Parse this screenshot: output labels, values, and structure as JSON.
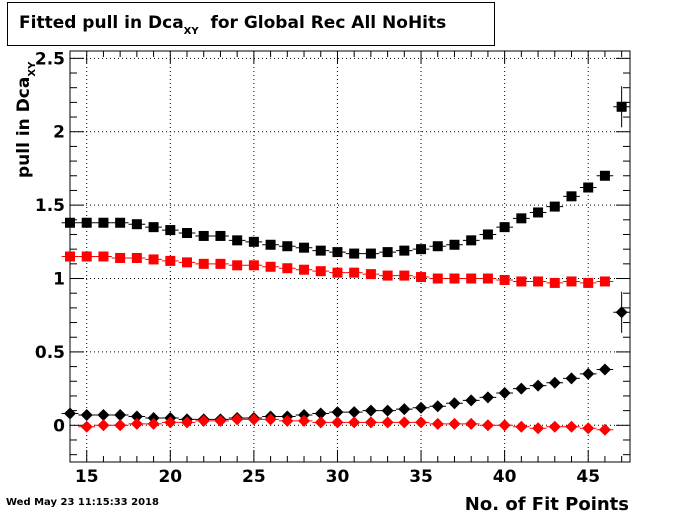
{
  "header": {
    "title_main": "Fitted pull in Dca",
    "title_sub": "XY",
    "title_rest": "for Global Rec All NoHits"
  },
  "footer": {
    "timestamp": "Wed May 23 11:15:33 2018"
  },
  "chart_data": {
    "type": "scatter",
    "title": "Fitted pull in Dca_XY for Global Rec All NoHits",
    "xlabel": "No. of Fit Points",
    "ylabel": "pull in Dca_XY",
    "xlim": [
      14,
      47.5
    ],
    "ylim": [
      -0.25,
      2.55
    ],
    "x_ticks": [
      15,
      20,
      25,
      30,
      35,
      40,
      45
    ],
    "y_ticks": [
      0,
      0.5,
      1,
      1.5,
      2,
      2.5
    ],
    "x_tick_labels": [
      "15",
      "20",
      "25",
      "30",
      "35",
      "40",
      "45"
    ],
    "y_tick_labels": [
      "0",
      "0.5",
      "1",
      "1.5",
      "2",
      "2.5"
    ],
    "grid": true,
    "series": [
      {
        "marker": "square",
        "color": "#000000",
        "points": [
          [
            14,
            1.38
          ],
          [
            15,
            1.38
          ],
          [
            16,
            1.38
          ],
          [
            17,
            1.38
          ],
          [
            18,
            1.37
          ],
          [
            19,
            1.35
          ],
          [
            20,
            1.33
          ],
          [
            21,
            1.31
          ],
          [
            22,
            1.29
          ],
          [
            23,
            1.29
          ],
          [
            24,
            1.26
          ],
          [
            25,
            1.25
          ],
          [
            26,
            1.23
          ],
          [
            27,
            1.22
          ],
          [
            28,
            1.21
          ],
          [
            29,
            1.19
          ],
          [
            30,
            1.18
          ],
          [
            31,
            1.17
          ],
          [
            32,
            1.17
          ],
          [
            33,
            1.18
          ],
          [
            34,
            1.19
          ],
          [
            35,
            1.2
          ],
          [
            36,
            1.22
          ],
          [
            37,
            1.23
          ],
          [
            38,
            1.26
          ],
          [
            39,
            1.3
          ],
          [
            40,
            1.35
          ],
          [
            41,
            1.41
          ],
          [
            42,
            1.45
          ],
          [
            43,
            1.49
          ],
          [
            44,
            1.56
          ],
          [
            45,
            1.62
          ],
          [
            46,
            1.7
          ],
          [
            47,
            2.17
          ]
        ],
        "yerr": [
          0,
          0,
          0,
          0,
          0,
          0,
          0,
          0,
          0,
          0,
          0,
          0,
          0,
          0,
          0,
          0,
          0,
          0,
          0,
          0,
          0,
          0,
          0,
          0,
          0,
          0,
          0,
          0,
          0,
          0,
          0,
          0,
          0,
          0.14
        ]
      },
      {
        "marker": "square",
        "color": "#ff0000",
        "points": [
          [
            14,
            1.15
          ],
          [
            15,
            1.15
          ],
          [
            16,
            1.15
          ],
          [
            17,
            1.14
          ],
          [
            18,
            1.14
          ],
          [
            19,
            1.13
          ],
          [
            20,
            1.12
          ],
          [
            21,
            1.11
          ],
          [
            22,
            1.1
          ],
          [
            23,
            1.1
          ],
          [
            24,
            1.09
          ],
          [
            25,
            1.09
          ],
          [
            26,
            1.08
          ],
          [
            27,
            1.07
          ],
          [
            28,
            1.06
          ],
          [
            29,
            1.05
          ],
          [
            30,
            1.04
          ],
          [
            31,
            1.04
          ],
          [
            32,
            1.03
          ],
          [
            33,
            1.02
          ],
          [
            34,
            1.02
          ],
          [
            35,
            1.01
          ],
          [
            36,
            1.0
          ],
          [
            37,
            1.0
          ],
          [
            38,
            1.0
          ],
          [
            39,
            1.0
          ],
          [
            40,
            0.99
          ],
          [
            41,
            0.98
          ],
          [
            42,
            0.98
          ],
          [
            43,
            0.97
          ],
          [
            44,
            0.98
          ],
          [
            45,
            0.97
          ],
          [
            46,
            0.98
          ]
        ]
      },
      {
        "marker": "diamond",
        "color": "#000000",
        "points": [
          [
            14,
            0.08
          ],
          [
            15,
            0.07
          ],
          [
            16,
            0.07
          ],
          [
            17,
            0.07
          ],
          [
            18,
            0.06
          ],
          [
            19,
            0.05
          ],
          [
            20,
            0.05
          ],
          [
            21,
            0.04
          ],
          [
            22,
            0.04
          ],
          [
            23,
            0.04
          ],
          [
            24,
            0.05
          ],
          [
            25,
            0.05
          ],
          [
            26,
            0.06
          ],
          [
            27,
            0.06
          ],
          [
            28,
            0.07
          ],
          [
            29,
            0.08
          ],
          [
            30,
            0.09
          ],
          [
            31,
            0.09
          ],
          [
            32,
            0.1
          ],
          [
            33,
            0.1
          ],
          [
            34,
            0.11
          ],
          [
            35,
            0.12
          ],
          [
            36,
            0.13
          ],
          [
            37,
            0.15
          ],
          [
            38,
            0.17
          ],
          [
            39,
            0.19
          ],
          [
            40,
            0.22
          ],
          [
            41,
            0.25
          ],
          [
            42,
            0.27
          ],
          [
            43,
            0.29
          ],
          [
            44,
            0.32
          ],
          [
            45,
            0.35
          ],
          [
            46,
            0.38
          ],
          [
            47,
            0.77
          ]
        ],
        "yerr": [
          0,
          0,
          0,
          0,
          0,
          0,
          0,
          0,
          0,
          0,
          0,
          0,
          0,
          0,
          0,
          0,
          0,
          0,
          0,
          0,
          0,
          0,
          0,
          0,
          0,
          0,
          0,
          0,
          0,
          0,
          0,
          0,
          0,
          0.14
        ]
      },
      {
        "marker": "diamond",
        "color": "#ff0000",
        "points": [
          [
            15,
            -0.01
          ],
          [
            16,
            0.0
          ],
          [
            17,
            0.0
          ],
          [
            18,
            0.01
          ],
          [
            19,
            0.01
          ],
          [
            20,
            0.02
          ],
          [
            21,
            0.02
          ],
          [
            22,
            0.03
          ],
          [
            23,
            0.03
          ],
          [
            24,
            0.04
          ],
          [
            25,
            0.04
          ],
          [
            26,
            0.04
          ],
          [
            27,
            0.03
          ],
          [
            28,
            0.03
          ],
          [
            29,
            0.02
          ],
          [
            30,
            0.02
          ],
          [
            31,
            0.02
          ],
          [
            32,
            0.02
          ],
          [
            33,
            0.02
          ],
          [
            34,
            0.02
          ],
          [
            35,
            0.02
          ],
          [
            36,
            0.01
          ],
          [
            37,
            0.01
          ],
          [
            38,
            0.01
          ],
          [
            39,
            0.0
          ],
          [
            40,
            0.0
          ],
          [
            41,
            -0.01
          ],
          [
            42,
            -0.02
          ],
          [
            43,
            -0.01
          ],
          [
            44,
            -0.01
          ],
          [
            45,
            -0.02
          ],
          [
            46,
            -0.03
          ]
        ]
      }
    ]
  }
}
